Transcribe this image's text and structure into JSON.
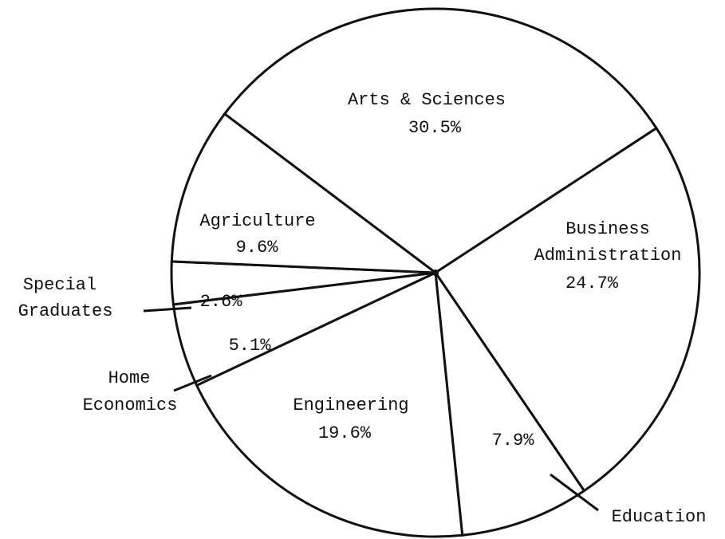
{
  "chart_data": {
    "type": "pie",
    "categories": [
      "Arts & Sciences",
      "Business Administration",
      "Education",
      "Engineering",
      "Home Economics",
      "Special Graduates",
      "Agriculture"
    ],
    "values": [
      30.5,
      24.7,
      7.9,
      19.6,
      5.1,
      2.6,
      9.6
    ],
    "value_labels": [
      "30.5%",
      "24.7%",
      "7.9%",
      "19.6%",
      "5.1%",
      "2.6%",
      "9.6%"
    ],
    "color": "#ffffff"
  }
}
